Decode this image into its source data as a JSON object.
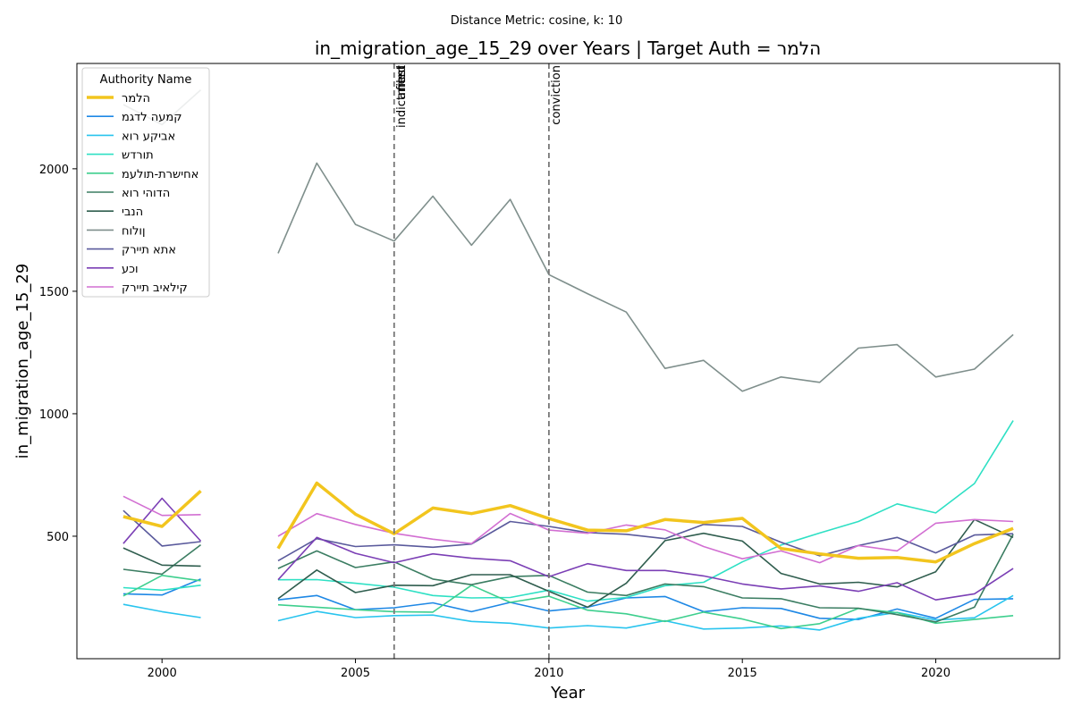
{
  "chart_data": {
    "type": "line",
    "suptitle": "Distance Metric: cosine, k: 10",
    "title": "in_migration_age_15_29 over Years | Target Auth = הלמר",
    "xlabel": "Year",
    "ylabel": "in_migration_age_15_29",
    "xlim": [
      1997.8,
      2023.2
    ],
    "ylim": [
      0,
      2430
    ],
    "xticks": [
      2000,
      2005,
      2010,
      2015,
      2020
    ],
    "yticks": [
      500,
      1000,
      1500,
      2000
    ],
    "grid": false,
    "legend_title": "Authority Name",
    "legend_position": "upper-left",
    "events": [
      {
        "x": 2006,
        "labels": [
          "indictment",
          "arrest",
          "filed"
        ]
      },
      {
        "x": 2010,
        "labels": [
          "conviction"
        ]
      }
    ],
    "x": [
      1999,
      2000,
      2001,
      2002,
      2003,
      2004,
      2005,
      2006,
      2007,
      2008,
      2009,
      2010,
      2011,
      2012,
      2013,
      2014,
      2015,
      2016,
      2017,
      2018,
      2019,
      2020,
      2021,
      2022
    ],
    "series": [
      {
        "name": "הלמר",
        "color": "#f2c51e",
        "width": 3.5,
        "values": [
          580,
          540,
          685,
          null,
          450,
          717,
          590,
          510,
          615,
          592,
          625,
          572,
          525,
          522,
          568,
          556,
          573,
          450,
          428,
          410,
          413,
          395,
          470,
          532
        ]
      },
      {
        "name": "קמעה לדגמ",
        "color": "#1e88e5",
        "width": 1.6,
        "values": [
          265,
          260,
          325,
          null,
          240,
          258,
          200,
          208,
          228,
          192,
          230,
          195,
          210,
          248,
          254,
          192,
          208,
          205,
          165,
          160,
          203,
          165,
          242,
          245
        ]
      },
      {
        "name": "אביקע רוא",
        "color": "#29c4ee",
        "width": 1.6,
        "values": [
          222,
          192,
          168,
          null,
          155,
          193,
          168,
          176,
          178,
          152,
          145,
          125,
          135,
          125,
          155,
          121,
          125,
          134,
          117,
          165,
          189,
          158,
          167,
          258
        ]
      },
      {
        "name": "תורדש",
        "color": "#2ee0c4",
        "width": 1.6,
        "values": [
          290,
          280,
          300,
          null,
          322,
          323,
          308,
          292,
          258,
          248,
          250,
          280,
          235,
          250,
          298,
          312,
          395,
          464,
          513,
          560,
          632,
          595,
          715,
          972
        ]
      },
      {
        "name": "אחישרת-תולעמ",
        "color": "#3ecf8e",
        "width": 1.6,
        "values": [
          256,
          340,
          318,
          null,
          220,
          210,
          200,
          192,
          190,
          300,
          230,
          255,
          198,
          183,
          152,
          190,
          162,
          123,
          143,
          205,
          188,
          145,
          160,
          176
        ]
      },
      {
        "name": "הדוהי רוא",
        "color": "#3b7d62",
        "width": 1.6,
        "values": [
          365,
          345,
          465,
          null,
          368,
          440,
          372,
          395,
          325,
          302,
          335,
          340,
          272,
          258,
          305,
          294,
          248,
          245,
          208,
          206,
          180,
          150,
          210,
          508
        ]
      },
      {
        "name": "הנבי",
        "color": "#2f5d4e",
        "width": 1.6,
        "values": [
          452,
          382,
          378,
          null,
          245,
          362,
          270,
          300,
          298,
          343,
          343,
          275,
          210,
          308,
          482,
          512,
          480,
          348,
          305,
          312,
          293,
          355,
          568,
          495
        ]
      },
      {
        "name": "ןולוח",
        "color": "#7f8f8c",
        "width": 1.6,
        "values": [
          2262,
          2180,
          2322,
          null,
          1655,
          2023,
          1773,
          1705,
          1888,
          1688,
          1875,
          1568,
          1490,
          1415,
          1185,
          1218,
          1092,
          1150,
          1128,
          1268,
          1282,
          1150,
          1182,
          1323
        ]
      },
      {
        "name": "אתא תיירק",
        "color": "#5a5a9c",
        "width": 1.6,
        "values": [
          605,
          460,
          478,
          null,
          400,
          490,
          458,
          465,
          455,
          468,
          560,
          540,
          515,
          508,
          490,
          548,
          540,
          475,
          420,
          462,
          495,
          432,
          505,
          510
        ]
      },
      {
        "name": "וכע",
        "color": "#7b3fb5",
        "width": 1.6,
        "values": [
          470,
          655,
          480,
          null,
          322,
          495,
          430,
          392,
          428,
          410,
          400,
          335,
          388,
          360,
          360,
          338,
          305,
          285,
          297,
          275,
          310,
          240,
          265,
          368
        ]
      },
      {
        "name": "קילאיב תיירק",
        "color": "#d26fd2",
        "width": 1.6,
        "values": [
          663,
          585,
          588,
          null,
          500,
          592,
          548,
          512,
          488,
          470,
          593,
          525,
          512,
          546,
          526,
          458,
          408,
          440,
          392,
          462,
          440,
          553,
          568,
          560
        ]
      }
    ]
  }
}
